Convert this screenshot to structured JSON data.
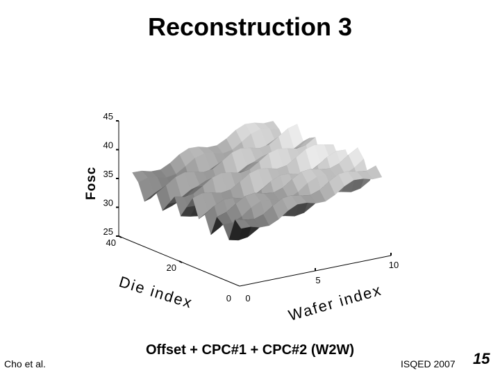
{
  "slide": {
    "title": "Reconstruction 3",
    "caption": "Offset + CPC#1 + CPC#2 (W2W)",
    "author": "Cho et al.",
    "conference": "ISQED 2007",
    "page_number": "15"
  },
  "chart_data": {
    "type": "surface",
    "title": "",
    "zlabel": "Fosc",
    "xlabel": "Die index",
    "ylabel": "Wafer index",
    "zlim": [
      25,
      45
    ],
    "ztick_labels": [
      "45",
      "40",
      "35",
      "30",
      "25"
    ],
    "die_ticks": [
      "20",
      "40"
    ],
    "die_origin": "0",
    "wafer_ticks": [
      "5",
      "10"
    ],
    "wafer_origin": "0",
    "colormap": "gray",
    "surface_base": 32,
    "wafer_trend": 0.6,
    "die_variation": [
      0.0,
      1.2,
      2.5,
      -1.0,
      1.8,
      3.0,
      -0.5,
      2.2,
      0.5,
      3.2,
      1.0,
      -0.8,
      2.6,
      1.5,
      0.2,
      2.8,
      1.1,
      -0.4,
      2.0,
      3.1
    ]
  }
}
